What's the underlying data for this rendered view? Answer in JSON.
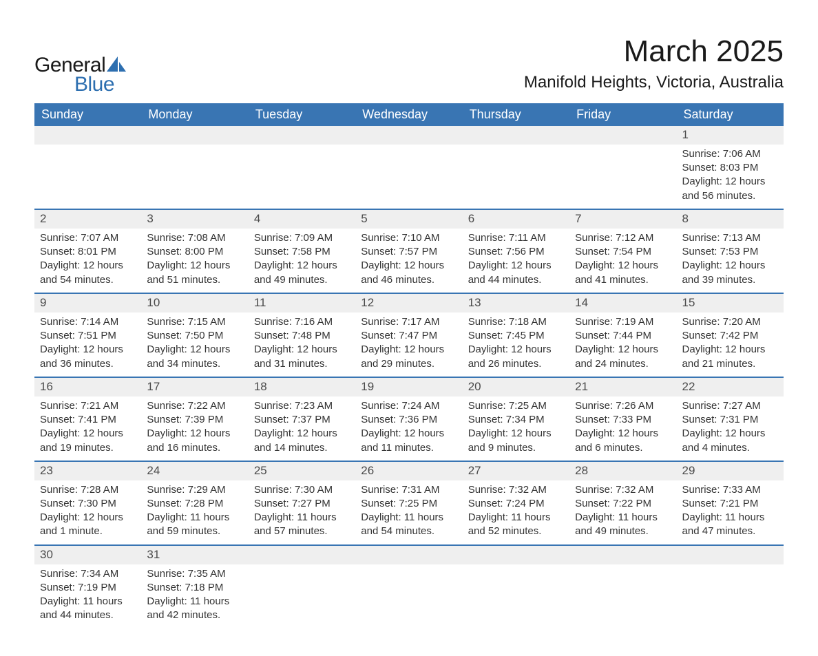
{
  "brand": {
    "word1": "General",
    "word2": "Blue",
    "color_dark": "#1a1a1a",
    "color_blue": "#2d6fb0",
    "shape_color": "#2d6fb0"
  },
  "title": "March 2025",
  "location": "Manifold Heights, Victoria, Australia",
  "colors": {
    "header_bg": "#3975b3",
    "header_text": "#ffffff",
    "daynum_bg": "#efefef",
    "row_border": "#3975b3",
    "body_text": "#333333",
    "page_bg": "#ffffff"
  },
  "weekdays": [
    "Sunday",
    "Monday",
    "Tuesday",
    "Wednesday",
    "Thursday",
    "Friday",
    "Saturday"
  ],
  "weeks": [
    {
      "nums": [
        "",
        "",
        "",
        "",
        "",
        "",
        "1"
      ],
      "cells": [
        null,
        null,
        null,
        null,
        null,
        null,
        {
          "sunrise": "Sunrise: 7:06 AM",
          "sunset": "Sunset: 8:03 PM",
          "day1": "Daylight: 12 hours",
          "day2": "and 56 minutes."
        }
      ]
    },
    {
      "nums": [
        "2",
        "3",
        "4",
        "5",
        "6",
        "7",
        "8"
      ],
      "cells": [
        {
          "sunrise": "Sunrise: 7:07 AM",
          "sunset": "Sunset: 8:01 PM",
          "day1": "Daylight: 12 hours",
          "day2": "and 54 minutes."
        },
        {
          "sunrise": "Sunrise: 7:08 AM",
          "sunset": "Sunset: 8:00 PM",
          "day1": "Daylight: 12 hours",
          "day2": "and 51 minutes."
        },
        {
          "sunrise": "Sunrise: 7:09 AM",
          "sunset": "Sunset: 7:58 PM",
          "day1": "Daylight: 12 hours",
          "day2": "and 49 minutes."
        },
        {
          "sunrise": "Sunrise: 7:10 AM",
          "sunset": "Sunset: 7:57 PM",
          "day1": "Daylight: 12 hours",
          "day2": "and 46 minutes."
        },
        {
          "sunrise": "Sunrise: 7:11 AM",
          "sunset": "Sunset: 7:56 PM",
          "day1": "Daylight: 12 hours",
          "day2": "and 44 minutes."
        },
        {
          "sunrise": "Sunrise: 7:12 AM",
          "sunset": "Sunset: 7:54 PM",
          "day1": "Daylight: 12 hours",
          "day2": "and 41 minutes."
        },
        {
          "sunrise": "Sunrise: 7:13 AM",
          "sunset": "Sunset: 7:53 PM",
          "day1": "Daylight: 12 hours",
          "day2": "and 39 minutes."
        }
      ]
    },
    {
      "nums": [
        "9",
        "10",
        "11",
        "12",
        "13",
        "14",
        "15"
      ],
      "cells": [
        {
          "sunrise": "Sunrise: 7:14 AM",
          "sunset": "Sunset: 7:51 PM",
          "day1": "Daylight: 12 hours",
          "day2": "and 36 minutes."
        },
        {
          "sunrise": "Sunrise: 7:15 AM",
          "sunset": "Sunset: 7:50 PM",
          "day1": "Daylight: 12 hours",
          "day2": "and 34 minutes."
        },
        {
          "sunrise": "Sunrise: 7:16 AM",
          "sunset": "Sunset: 7:48 PM",
          "day1": "Daylight: 12 hours",
          "day2": "and 31 minutes."
        },
        {
          "sunrise": "Sunrise: 7:17 AM",
          "sunset": "Sunset: 7:47 PM",
          "day1": "Daylight: 12 hours",
          "day2": "and 29 minutes."
        },
        {
          "sunrise": "Sunrise: 7:18 AM",
          "sunset": "Sunset: 7:45 PM",
          "day1": "Daylight: 12 hours",
          "day2": "and 26 minutes."
        },
        {
          "sunrise": "Sunrise: 7:19 AM",
          "sunset": "Sunset: 7:44 PM",
          "day1": "Daylight: 12 hours",
          "day2": "and 24 minutes."
        },
        {
          "sunrise": "Sunrise: 7:20 AM",
          "sunset": "Sunset: 7:42 PM",
          "day1": "Daylight: 12 hours",
          "day2": "and 21 minutes."
        }
      ]
    },
    {
      "nums": [
        "16",
        "17",
        "18",
        "19",
        "20",
        "21",
        "22"
      ],
      "cells": [
        {
          "sunrise": "Sunrise: 7:21 AM",
          "sunset": "Sunset: 7:41 PM",
          "day1": "Daylight: 12 hours",
          "day2": "and 19 minutes."
        },
        {
          "sunrise": "Sunrise: 7:22 AM",
          "sunset": "Sunset: 7:39 PM",
          "day1": "Daylight: 12 hours",
          "day2": "and 16 minutes."
        },
        {
          "sunrise": "Sunrise: 7:23 AM",
          "sunset": "Sunset: 7:37 PM",
          "day1": "Daylight: 12 hours",
          "day2": "and 14 minutes."
        },
        {
          "sunrise": "Sunrise: 7:24 AM",
          "sunset": "Sunset: 7:36 PM",
          "day1": "Daylight: 12 hours",
          "day2": "and 11 minutes."
        },
        {
          "sunrise": "Sunrise: 7:25 AM",
          "sunset": "Sunset: 7:34 PM",
          "day1": "Daylight: 12 hours",
          "day2": "and 9 minutes."
        },
        {
          "sunrise": "Sunrise: 7:26 AM",
          "sunset": "Sunset: 7:33 PM",
          "day1": "Daylight: 12 hours",
          "day2": "and 6 minutes."
        },
        {
          "sunrise": "Sunrise: 7:27 AM",
          "sunset": "Sunset: 7:31 PM",
          "day1": "Daylight: 12 hours",
          "day2": "and 4 minutes."
        }
      ]
    },
    {
      "nums": [
        "23",
        "24",
        "25",
        "26",
        "27",
        "28",
        "29"
      ],
      "cells": [
        {
          "sunrise": "Sunrise: 7:28 AM",
          "sunset": "Sunset: 7:30 PM",
          "day1": "Daylight: 12 hours",
          "day2": "and 1 minute."
        },
        {
          "sunrise": "Sunrise: 7:29 AM",
          "sunset": "Sunset: 7:28 PM",
          "day1": "Daylight: 11 hours",
          "day2": "and 59 minutes."
        },
        {
          "sunrise": "Sunrise: 7:30 AM",
          "sunset": "Sunset: 7:27 PM",
          "day1": "Daylight: 11 hours",
          "day2": "and 57 minutes."
        },
        {
          "sunrise": "Sunrise: 7:31 AM",
          "sunset": "Sunset: 7:25 PM",
          "day1": "Daylight: 11 hours",
          "day2": "and 54 minutes."
        },
        {
          "sunrise": "Sunrise: 7:32 AM",
          "sunset": "Sunset: 7:24 PM",
          "day1": "Daylight: 11 hours",
          "day2": "and 52 minutes."
        },
        {
          "sunrise": "Sunrise: 7:32 AM",
          "sunset": "Sunset: 7:22 PM",
          "day1": "Daylight: 11 hours",
          "day2": "and 49 minutes."
        },
        {
          "sunrise": "Sunrise: 7:33 AM",
          "sunset": "Sunset: 7:21 PM",
          "day1": "Daylight: 11 hours",
          "day2": "and 47 minutes."
        }
      ]
    },
    {
      "nums": [
        "30",
        "31",
        "",
        "",
        "",
        "",
        ""
      ],
      "cells": [
        {
          "sunrise": "Sunrise: 7:34 AM",
          "sunset": "Sunset: 7:19 PM",
          "day1": "Daylight: 11 hours",
          "day2": "and 44 minutes."
        },
        {
          "sunrise": "Sunrise: 7:35 AM",
          "sunset": "Sunset: 7:18 PM",
          "day1": "Daylight: 11 hours",
          "day2": "and 42 minutes."
        },
        null,
        null,
        null,
        null,
        null
      ]
    }
  ]
}
